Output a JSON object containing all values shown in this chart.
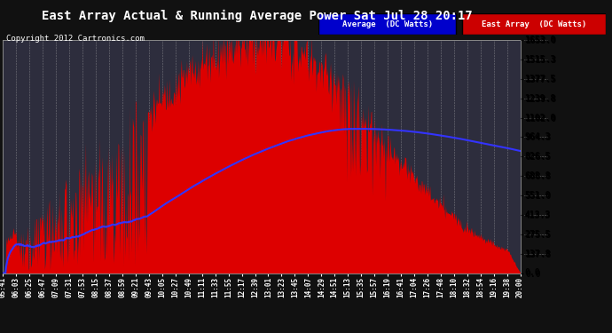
{
  "title": "East Array Actual & Running Average Power Sat Jul 28 20:17",
  "copyright": "Copyright 2012 Cartronics.com",
  "yticks": [
    0.0,
    137.8,
    275.5,
    413.3,
    551.0,
    688.8,
    826.5,
    964.3,
    1102.0,
    1239.8,
    1377.5,
    1515.3,
    1653.0
  ],
  "ymax": 1653.0,
  "bg_color": "#1a1a2e",
  "plot_bg_color": "#2a2a3a",
  "grid_color": "#888888",
  "area_color": "#dd0000",
  "avg_color": "#3333ff",
  "title_color": "#ffffff",
  "title_fontsize": 11,
  "copyright_color": "#ffffff",
  "copyright_fontsize": 7,
  "xtick_labels": [
    "05:41",
    "06:03",
    "06:25",
    "06:47",
    "07:09",
    "07:31",
    "07:53",
    "08:15",
    "08:37",
    "08:59",
    "09:21",
    "09:43",
    "10:05",
    "10:27",
    "10:49",
    "11:11",
    "11:33",
    "11:55",
    "12:17",
    "12:39",
    "13:01",
    "13:23",
    "13:45",
    "14:07",
    "14:29",
    "14:51",
    "15:13",
    "15:35",
    "15:57",
    "16:19",
    "16:41",
    "17:04",
    "17:26",
    "17:48",
    "18:10",
    "18:32",
    "18:54",
    "19:16",
    "19:38",
    "20:00"
  ],
  "legend_avg_label": "Average  (DC Watts)",
  "legend_east_label": "East Array  (DC Watts)",
  "legend_avg_bg": "#0000cc",
  "legend_east_bg": "#cc0000",
  "n_points": 860
}
